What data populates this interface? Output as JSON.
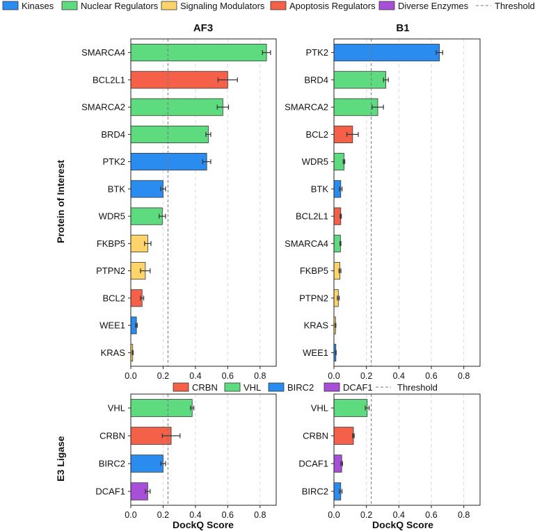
{
  "colors": {
    "Kinases": "#2b8cf0",
    "Nuclear Regulators": "#5ddb7e",
    "Signaling Modulators": "#fdd46a",
    "Apoptosis Regulators": "#f56148",
    "Diverse Enzymes": "#a74fd8",
    "CRBN": "#f56148",
    "VHL": "#5ddb7e",
    "BIRC2": "#2b8cf0",
    "DCAF1": "#a74fd8"
  },
  "legend_top": {
    "items": [
      "Kinases",
      "Nuclear Regulators",
      "Signaling Modulators",
      "Apoptosis Regulators",
      "Diverse Enzymes"
    ],
    "threshold_label": "Threshold"
  },
  "legend_bottom": {
    "items": [
      "CRBN",
      "VHL",
      "BIRC2",
      "DCAF1"
    ],
    "threshold_label": "Threshold"
  },
  "labels": {
    "col_af3": "AF3",
    "col_b1": "B1",
    "ylabel_top": "Protein of Interest",
    "ylabel_bottom": "E3 Ligase",
    "xlabel": "DockQ Score"
  },
  "chart_data": [
    {
      "id": "af3_poi",
      "type": "bar",
      "orientation": "horizontal",
      "title": "AF3",
      "xlim": [
        0,
        0.9
      ],
      "xticks": [
        "0.0",
        "0.2",
        "0.4",
        "0.6",
        "0.8"
      ],
      "threshold": 0.23,
      "bars": [
        {
          "label": "SMARCA4",
          "value": 0.84,
          "err": 0.025,
          "group": "Nuclear Regulators"
        },
        {
          "label": "BCL2L1",
          "value": 0.6,
          "err": 0.06,
          "group": "Apoptosis Regulators"
        },
        {
          "label": "SMARCA2",
          "value": 0.57,
          "err": 0.035,
          "group": "Nuclear Regulators"
        },
        {
          "label": "BRD4",
          "value": 0.48,
          "err": 0.015,
          "group": "Nuclear Regulators"
        },
        {
          "label": "PTK2",
          "value": 0.47,
          "err": 0.025,
          "group": "Kinases"
        },
        {
          "label": "BTK",
          "value": 0.2,
          "err": 0.015,
          "group": "Kinases"
        },
        {
          "label": "WDR5",
          "value": 0.195,
          "err": 0.02,
          "group": "Nuclear Regulators"
        },
        {
          "label": "FKBP5",
          "value": 0.105,
          "err": 0.02,
          "group": "Signaling Modulators"
        },
        {
          "label": "PTPN2",
          "value": 0.09,
          "err": 0.03,
          "group": "Signaling Modulators"
        },
        {
          "label": "BCL2",
          "value": 0.07,
          "err": 0.01,
          "group": "Apoptosis Regulators"
        },
        {
          "label": "WEE1",
          "value": 0.035,
          "err": 0.005,
          "group": "Kinases"
        },
        {
          "label": "KRAS",
          "value": 0.012,
          "err": 0.003,
          "group": "Signaling Modulators"
        }
      ]
    },
    {
      "id": "b1_poi",
      "type": "bar",
      "orientation": "horizontal",
      "title": "B1",
      "xlim": [
        0,
        0.9
      ],
      "xticks": [
        "0.0",
        "0.2",
        "0.4",
        "0.6",
        "0.8"
      ],
      "threshold": 0.23,
      "bars": [
        {
          "label": "PTK2",
          "value": 0.65,
          "err": 0.02,
          "group": "Kinases"
        },
        {
          "label": "BRD4",
          "value": 0.32,
          "err": 0.015,
          "group": "Nuclear Regulators"
        },
        {
          "label": "SMARCA2",
          "value": 0.27,
          "err": 0.035,
          "group": "Nuclear Regulators"
        },
        {
          "label": "BCL2",
          "value": 0.115,
          "err": 0.035,
          "group": "Apoptosis Regulators"
        },
        {
          "label": "WDR5",
          "value": 0.062,
          "err": 0.005,
          "group": "Nuclear Regulators"
        },
        {
          "label": "BTK",
          "value": 0.042,
          "err": 0.008,
          "group": "Kinases"
        },
        {
          "label": "BCL2L1",
          "value": 0.042,
          "err": 0.004,
          "group": "Apoptosis Regulators"
        },
        {
          "label": "SMARCA4",
          "value": 0.04,
          "err": 0.003,
          "group": "Nuclear Regulators"
        },
        {
          "label": "FKBP5",
          "value": 0.037,
          "err": 0.006,
          "group": "Signaling Modulators"
        },
        {
          "label": "PTPN2",
          "value": 0.027,
          "err": 0.006,
          "group": "Signaling Modulators"
        },
        {
          "label": "KRAS",
          "value": 0.01,
          "err": 0.002,
          "group": "Signaling Modulators"
        },
        {
          "label": "WEE1",
          "value": 0.012,
          "err": 0.002,
          "group": "Kinases"
        }
      ]
    },
    {
      "id": "af3_e3",
      "type": "bar",
      "orientation": "horizontal",
      "xlim": [
        0,
        0.9
      ],
      "xticks": [
        "0.0",
        "0.2",
        "0.4",
        "0.6",
        "0.8"
      ],
      "xlabel": "DockQ Score",
      "threshold": 0.23,
      "bars": [
        {
          "label": "VHL",
          "value": 0.38,
          "err": 0.01,
          "group": "VHL"
        },
        {
          "label": "CRBN",
          "value": 0.25,
          "err": 0.055,
          "group": "CRBN"
        },
        {
          "label": "BIRC2",
          "value": 0.2,
          "err": 0.015,
          "group": "BIRC2"
        },
        {
          "label": "DCAF1",
          "value": 0.105,
          "err": 0.015,
          "group": "DCAF1"
        }
      ]
    },
    {
      "id": "b1_e3",
      "type": "bar",
      "orientation": "horizontal",
      "xlim": [
        0,
        0.9
      ],
      "xticks": [
        "0.0",
        "0.2",
        "0.4",
        "0.6",
        "0.8"
      ],
      "xlabel": "DockQ Score",
      "threshold": 0.23,
      "bars": [
        {
          "label": "VHL",
          "value": 0.205,
          "err": 0.012,
          "group": "VHL"
        },
        {
          "label": "CRBN",
          "value": 0.12,
          "err": 0.005,
          "group": "CRBN"
        },
        {
          "label": "DCAF1",
          "value": 0.048,
          "err": 0.005,
          "group": "DCAF1"
        },
        {
          "label": "BIRC2",
          "value": 0.042,
          "err": 0.008,
          "group": "BIRC2"
        }
      ]
    }
  ]
}
